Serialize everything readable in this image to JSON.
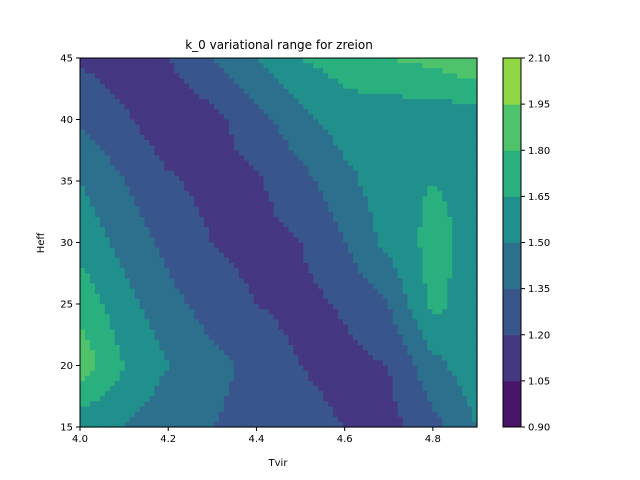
{
  "chart_data": {
    "type": "contourf",
    "title": "k_0 variational range for zreion",
    "xlabel": "Tvir",
    "ylabel": "Heff",
    "xlim": [
      4.0,
      4.9
    ],
    "ylim": [
      15,
      45
    ],
    "x_ticks": [
      "4.0",
      "4.2",
      "4.4",
      "4.6",
      "4.8"
    ],
    "y_ticks": [
      "15",
      "20",
      "25",
      "30",
      "35",
      "40",
      "45"
    ],
    "colorbar": {
      "levels": [
        0.9,
        1.05,
        1.2,
        1.35,
        1.5,
        1.65,
        1.8,
        1.95,
        2.1
      ],
      "tick_labels": [
        "0.90",
        "1.05",
        "1.20",
        "1.35",
        "1.50",
        "1.65",
        "1.80",
        "1.95",
        "2.10"
      ],
      "colors": [
        "#481467",
        "#453781",
        "#39568c",
        "#2d708e",
        "#21908d",
        "#2ab07f",
        "#4ec36b",
        "#8fd744",
        "#d2e21b"
      ]
    },
    "x": [
      4.0,
      4.1,
      4.2,
      4.3,
      4.4,
      4.5,
      4.6,
      4.7,
      4.8,
      4.9
    ],
    "y": [
      15,
      20,
      25,
      30,
      35,
      40,
      45
    ],
    "z": [
      [
        1.55,
        1.5,
        1.4,
        1.35,
        1.3,
        1.25,
        1.2,
        1.15,
        1.3,
        1.5
      ],
      [
        1.9,
        1.65,
        1.5,
        1.4,
        1.3,
        1.2,
        1.15,
        1.2,
        1.45,
        1.6
      ],
      [
        1.75,
        1.55,
        1.4,
        1.28,
        1.2,
        1.15,
        1.22,
        1.35,
        1.7,
        1.55
      ],
      [
        1.6,
        1.45,
        1.3,
        1.2,
        1.15,
        1.2,
        1.35,
        1.55,
        1.7,
        1.6
      ],
      [
        1.5,
        1.35,
        1.22,
        1.15,
        1.18,
        1.3,
        1.45,
        1.6,
        1.65,
        1.6
      ],
      [
        1.32,
        1.22,
        1.1,
        1.15,
        1.3,
        1.45,
        1.58,
        1.55,
        1.55,
        1.55
      ],
      [
        1.18,
        1.12,
        1.2,
        1.35,
        1.5,
        1.65,
        1.72,
        1.8,
        1.85,
        1.95
      ]
    ]
  }
}
